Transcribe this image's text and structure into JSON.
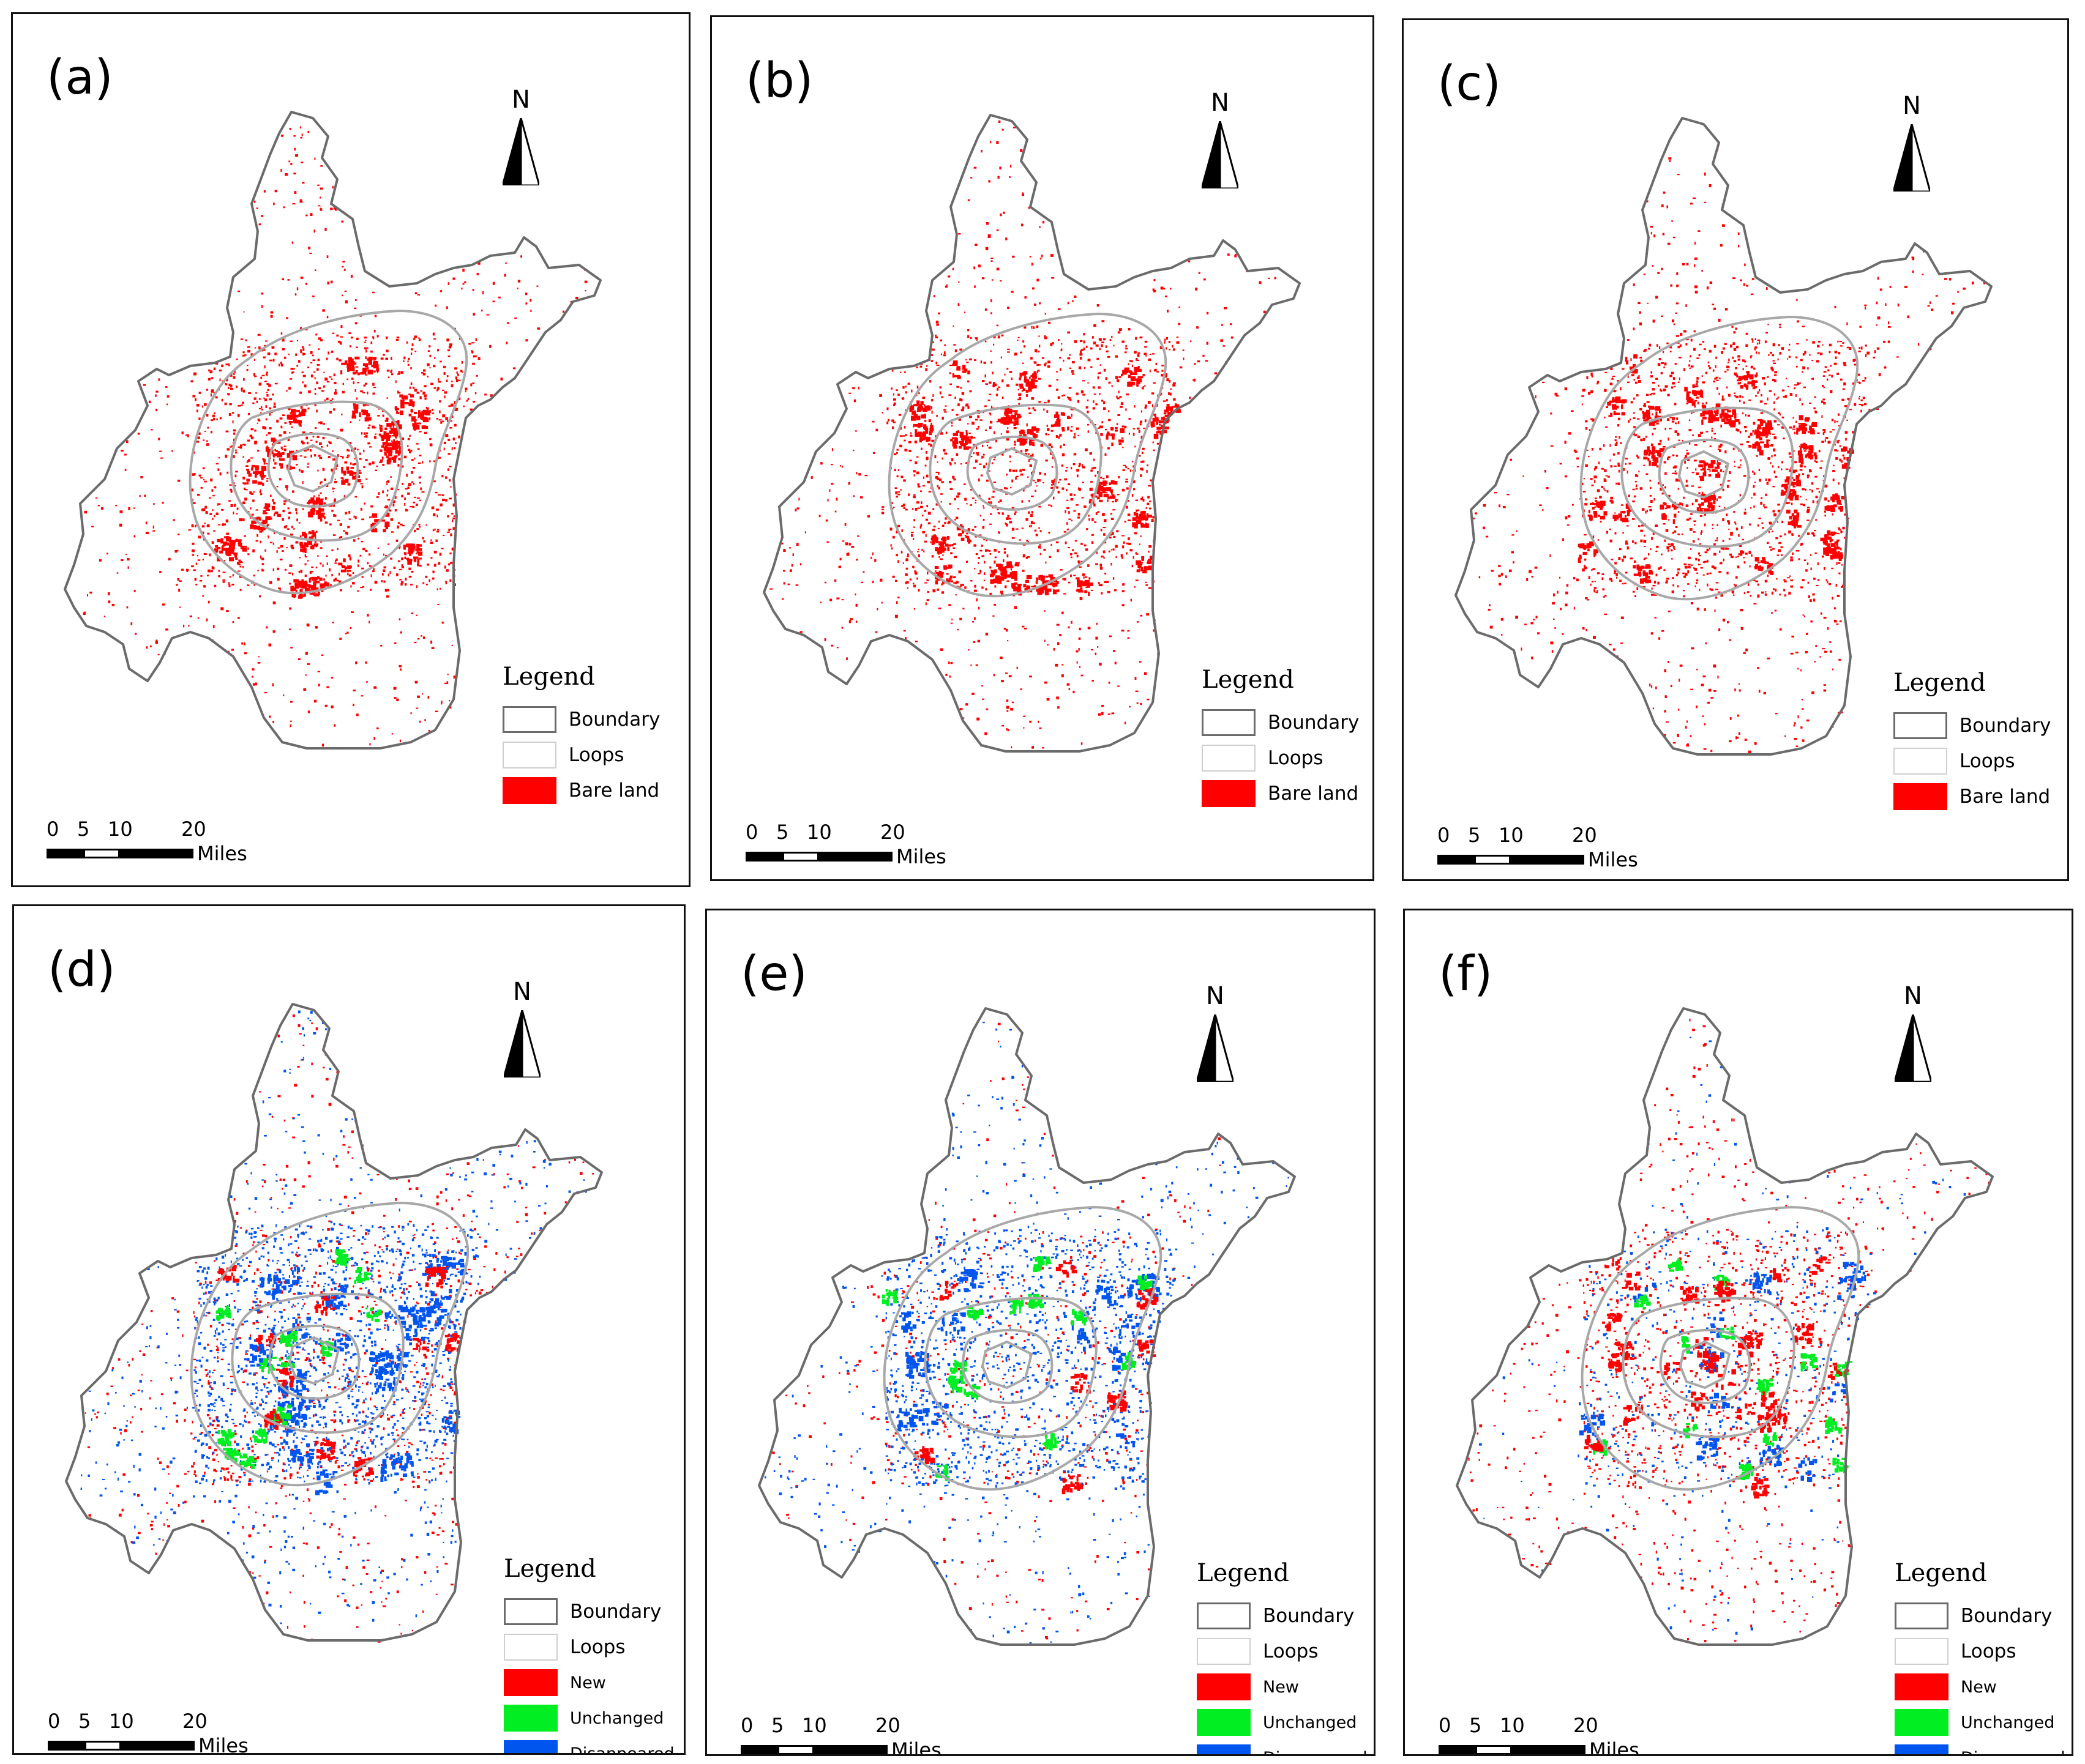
{
  "north_label": "N",
  "legend": {
    "title": "Legend",
    "boundary": "Boundary",
    "loops": "Loops",
    "bare_land": "Bare land",
    "new": "New",
    "unchanged": "Unchanged",
    "disappeared": "Disappeared"
  },
  "scale": {
    "t0": "0",
    "t5": "5",
    "t10": "10",
    "t20": "20",
    "unit": "Miles"
  },
  "panels": [
    {
      "label": "(a)",
      "type": "bare"
    },
    {
      "label": "(b)",
      "type": "bare"
    },
    {
      "label": "(c)",
      "type": "bare"
    },
    {
      "label": "(d)",
      "type": "change"
    },
    {
      "label": "(e)",
      "type": "change"
    },
    {
      "label": "(f)",
      "type": "change"
    }
  ],
  "colors": {
    "bare_land": "#ff0000",
    "new": "#ff0000",
    "unchanged": "#00ee22",
    "disappeared": "#0055ee",
    "boundary": "#6b6b6b",
    "loops": "#a8a8a8"
  }
}
